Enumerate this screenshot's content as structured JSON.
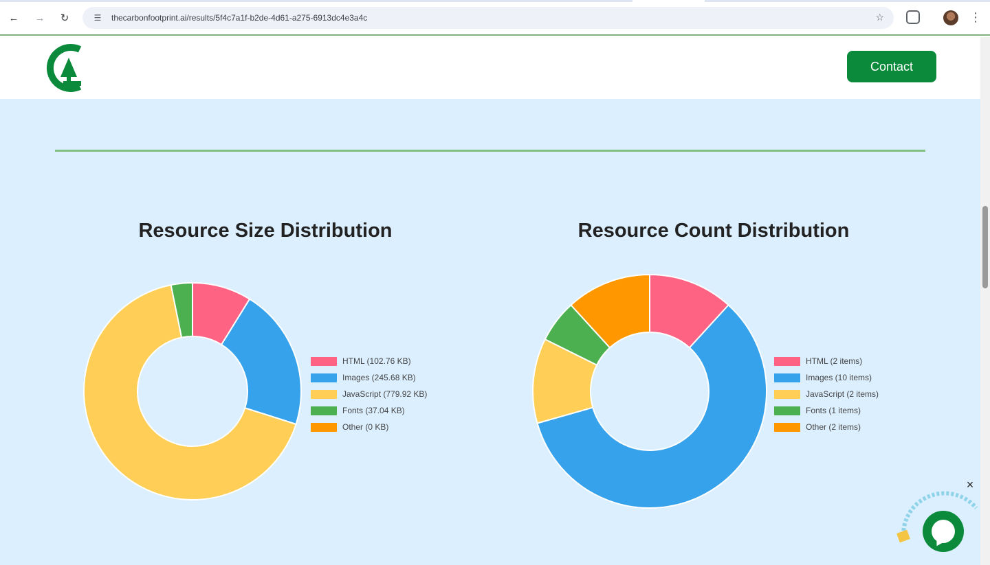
{
  "browser": {
    "url": "thecarbonfootprint.ai/results/5f4c7a1f-b2de-4d61-a275-6913dc4e3a4c",
    "site_icon": "tune-icon",
    "star_icon": "star-icon",
    "extensions_icon": "puzzle-icon",
    "menu_icon": "more-vertical-icon"
  },
  "header": {
    "logo_icon": "leaf-c-logo",
    "contact_label": "Contact",
    "brand_color": "#0a8a3a"
  },
  "colors": {
    "background": "#dcefff",
    "divider": "#7fbf7f"
  },
  "chart_data": [
    {
      "type": "donut",
      "title": "Resource Size Distribution",
      "categories": [
        "HTML",
        "Images",
        "JavaScript",
        "Fonts",
        "Other"
      ],
      "values": [
        102.76,
        245.68,
        779.92,
        37.04,
        0
      ],
      "unit": "KB",
      "colors": [
        "#ff6384",
        "#36a2eb",
        "#ffce56",
        "#4caf50",
        "#ff9800"
      ],
      "legend": [
        "HTML (102.76 KB)",
        "Images (245.68 KB)",
        "JavaScript (779.92 KB)",
        "Fonts (37.04 KB)",
        "Other (0 KB)"
      ],
      "legend_position": "right"
    },
    {
      "type": "donut",
      "title": "Resource Count Distribution",
      "categories": [
        "HTML",
        "Images",
        "JavaScript",
        "Fonts",
        "Other"
      ],
      "values": [
        2,
        10,
        2,
        1,
        2
      ],
      "unit": "items",
      "colors": [
        "#ff6384",
        "#36a2eb",
        "#ffce56",
        "#4caf50",
        "#ff9800"
      ],
      "legend": [
        "HTML (2 items)",
        "Images (10 items)",
        "JavaScript (2 items)",
        "Fonts (1 items)",
        "Other (2 items)"
      ],
      "legend_position": "right"
    }
  ],
  "chat_widget": {
    "close_label": "×",
    "bubble_icon": "chat-bubble-icon"
  }
}
